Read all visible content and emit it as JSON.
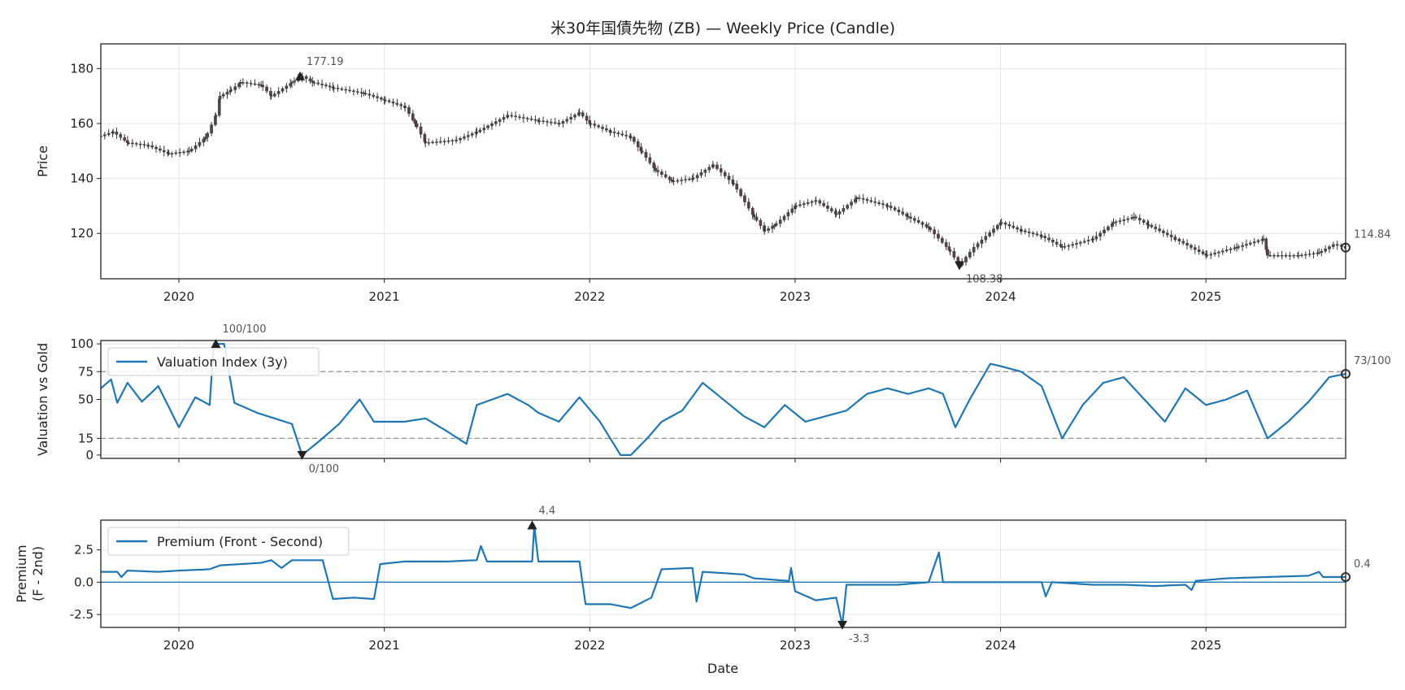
{
  "title": "米30年国債先物 (ZB) — Weekly Price (Candle)",
  "xlabel": "Date",
  "colors": {
    "up": "#5c8a70",
    "down": "#c0504d",
    "line": "#1f77b4",
    "grid": "#e6e6e6",
    "ref": "#999999",
    "axis": "#222222"
  },
  "chart_data": [
    {
      "type": "candlestick",
      "name": "price",
      "ylabel": "Price",
      "xlim": [
        2019.62,
        2025.68
      ],
      "ylim": [
        103.5,
        189
      ],
      "yticks": [
        120,
        140,
        160,
        180
      ],
      "xticks": [
        2020,
        2021,
        2022,
        2023,
        2024,
        2025
      ],
      "xtick_labels": [
        "2020",
        "2021",
        "2022",
        "2023",
        "2024",
        "2025"
      ],
      "close_anchors": [
        [
          2019.62,
          155.5
        ],
        [
          2019.68,
          157.0
        ],
        [
          2019.75,
          153.0
        ],
        [
          2019.85,
          152.0
        ],
        [
          2019.95,
          149.0
        ],
        [
          2020.05,
          150.0
        ],
        [
          2020.13,
          155.0
        ],
        [
          2020.18,
          163.0
        ],
        [
          2020.2,
          170.0
        ],
        [
          2020.25,
          172.0
        ],
        [
          2020.3,
          175.0
        ],
        [
          2020.4,
          174.0
        ],
        [
          2020.45,
          170.0
        ],
        [
          2020.55,
          175.0
        ],
        [
          2020.6,
          177.2
        ],
        [
          2020.65,
          175.0
        ],
        [
          2020.75,
          173.0
        ],
        [
          2020.9,
          171.0
        ],
        [
          2021.0,
          168.5
        ],
        [
          2021.1,
          166.0
        ],
        [
          2021.15,
          160.0
        ],
        [
          2021.2,
          153.0
        ],
        [
          2021.35,
          154.0
        ],
        [
          2021.45,
          157.0
        ],
        [
          2021.6,
          163.0
        ],
        [
          2021.75,
          161.0
        ],
        [
          2021.85,
          160.0
        ],
        [
          2021.95,
          164.0
        ],
        [
          2022.0,
          160.0
        ],
        [
          2022.1,
          157.0
        ],
        [
          2022.2,
          155.0
        ],
        [
          2022.25,
          150.0
        ],
        [
          2022.32,
          143.0
        ],
        [
          2022.4,
          139.0
        ],
        [
          2022.5,
          140.0
        ],
        [
          2022.6,
          145.0
        ],
        [
          2022.7,
          138.0
        ],
        [
          2022.8,
          126.0
        ],
        [
          2022.85,
          121.0
        ],
        [
          2022.9,
          123.0
        ],
        [
          2023.0,
          130.0
        ],
        [
          2023.1,
          132.0
        ],
        [
          2023.2,
          127.0
        ],
        [
          2023.3,
          133.0
        ],
        [
          2023.45,
          130.0
        ],
        [
          2023.55,
          126.0
        ],
        [
          2023.65,
          122.0
        ],
        [
          2023.75,
          114.0
        ],
        [
          2023.8,
          108.4
        ],
        [
          2023.87,
          115.0
        ],
        [
          2024.0,
          124.0
        ],
        [
          2024.1,
          121.0
        ],
        [
          2024.2,
          119.0
        ],
        [
          2024.3,
          115.0
        ],
        [
          2024.45,
          118.0
        ],
        [
          2024.55,
          124.0
        ],
        [
          2024.65,
          126.0
        ],
        [
          2024.72,
          123.0
        ],
        [
          2024.85,
          118.0
        ],
        [
          2025.0,
          112.0
        ],
        [
          2025.15,
          115.0
        ],
        [
          2025.28,
          118.0
        ],
        [
          2025.3,
          112.0
        ],
        [
          2025.45,
          112.0
        ],
        [
          2025.55,
          113.0
        ],
        [
          2025.62,
          116.0
        ],
        [
          2025.68,
          114.84
        ]
      ],
      "annotations": [
        {
          "x": 2020.59,
          "y": 177.19,
          "label": "177.19",
          "marker": "triangle-up"
        },
        {
          "x": 2023.8,
          "y": 108.38,
          "label": "108.38",
          "marker": "triangle-down"
        },
        {
          "x": 2025.68,
          "y": 114.84,
          "label": "114.84",
          "marker": "circle"
        }
      ]
    },
    {
      "type": "line",
      "name": "valuation",
      "ylabel": "Valuation vs Gold",
      "series": [
        {
          "name": "Valuation Index (3y)",
          "anchors": [
            [
              2019.62,
              60
            ],
            [
              2019.67,
              68
            ],
            [
              2019.7,
              47
            ],
            [
              2019.75,
              65
            ],
            [
              2019.82,
              48
            ],
            [
              2019.9,
              62
            ],
            [
              2020.0,
              25
            ],
            [
              2020.08,
              52
            ],
            [
              2020.15,
              45
            ],
            [
              2020.17,
              100
            ],
            [
              2020.22,
              100
            ],
            [
              2020.27,
              47
            ],
            [
              2020.38,
              38
            ],
            [
              2020.55,
              28
            ],
            [
              2020.6,
              0
            ],
            [
              2020.68,
              12
            ],
            [
              2020.78,
              28
            ],
            [
              2020.88,
              50
            ],
            [
              2020.95,
              30
            ],
            [
              2021.1,
              30
            ],
            [
              2021.2,
              33
            ],
            [
              2021.3,
              22
            ],
            [
              2021.4,
              10
            ],
            [
              2021.45,
              45
            ],
            [
              2021.6,
              55
            ],
            [
              2021.7,
              45
            ],
            [
              2021.75,
              38
            ],
            [
              2021.85,
              30
            ],
            [
              2021.95,
              52
            ],
            [
              2022.05,
              30
            ],
            [
              2022.15,
              0
            ],
            [
              2022.2,
              0
            ],
            [
              2022.28,
              15
            ],
            [
              2022.35,
              30
            ],
            [
              2022.45,
              40
            ],
            [
              2022.55,
              65
            ],
            [
              2022.65,
              50
            ],
            [
              2022.75,
              35
            ],
            [
              2022.85,
              25
            ],
            [
              2022.95,
              45
            ],
            [
              2023.05,
              30
            ],
            [
              2023.15,
              35
            ],
            [
              2023.25,
              40
            ],
            [
              2023.35,
              55
            ],
            [
              2023.45,
              60
            ],
            [
              2023.55,
              55
            ],
            [
              2023.65,
              60
            ],
            [
              2023.72,
              55
            ],
            [
              2023.78,
              25
            ],
            [
              2023.85,
              50
            ],
            [
              2023.95,
              82
            ],
            [
              2024.0,
              80
            ],
            [
              2024.1,
              75
            ],
            [
              2024.2,
              62
            ],
            [
              2024.3,
              15
            ],
            [
              2024.4,
              45
            ],
            [
              2024.5,
              65
            ],
            [
              2024.6,
              70
            ],
            [
              2024.7,
              50
            ],
            [
              2024.8,
              30
            ],
            [
              2024.9,
              60
            ],
            [
              2025.0,
              45
            ],
            [
              2025.1,
              50
            ],
            [
              2025.2,
              58
            ],
            [
              2025.3,
              15
            ],
            [
              2025.4,
              30
            ],
            [
              2025.5,
              48
            ],
            [
              2025.6,
              70
            ],
            [
              2025.68,
              73
            ]
          ]
        }
      ],
      "ylim": [
        -3,
        103
      ],
      "yticks": [
        0,
        15,
        50,
        75,
        100
      ],
      "reference_lines": [
        75,
        15
      ],
      "annotations": [
        {
          "x": 2020.18,
          "y": 100,
          "label": "100/100",
          "marker": "triangle-up"
        },
        {
          "x": 2020.6,
          "y": 0,
          "label": "0/100",
          "marker": "triangle-down"
        },
        {
          "x": 2025.68,
          "y": 73,
          "label": "73/100",
          "marker": "circle"
        }
      ],
      "legend": "top-left"
    },
    {
      "type": "line",
      "name": "premium",
      "ylabel": "Premium\n(F - 2nd)",
      "xlabel": "Date",
      "series": [
        {
          "name": "Premium (Front - Second)",
          "anchors": [
            [
              2019.62,
              0.8
            ],
            [
              2019.7,
              0.8
            ],
            [
              2019.72,
              0.4
            ],
            [
              2019.75,
              0.9
            ],
            [
              2019.9,
              0.8
            ],
            [
              2020.0,
              0.9
            ],
            [
              2020.15,
              1.0
            ],
            [
              2020.2,
              1.3
            ],
            [
              2020.4,
              1.5
            ],
            [
              2020.45,
              1.7
            ],
            [
              2020.5,
              1.1
            ],
            [
              2020.55,
              1.7
            ],
            [
              2020.7,
              1.7
            ],
            [
              2020.75,
              -1.3
            ],
            [
              2020.85,
              -1.2
            ],
            [
              2020.95,
              -1.3
            ],
            [
              2020.98,
              1.4
            ],
            [
              2021.1,
              1.6
            ],
            [
              2021.3,
              1.6
            ],
            [
              2021.45,
              1.7
            ],
            [
              2021.47,
              2.8
            ],
            [
              2021.5,
              1.6
            ],
            [
              2021.72,
              1.6
            ],
            [
              2021.73,
              4.4
            ],
            [
              2021.75,
              1.6
            ],
            [
              2021.95,
              1.6
            ],
            [
              2021.98,
              -1.7
            ],
            [
              2022.1,
              -1.7
            ],
            [
              2022.2,
              -2.0
            ],
            [
              2022.3,
              -1.2
            ],
            [
              2022.35,
              1.0
            ],
            [
              2022.5,
              1.1
            ],
            [
              2022.52,
              -1.5
            ],
            [
              2022.55,
              0.8
            ],
            [
              2022.75,
              0.6
            ],
            [
              2022.8,
              0.3
            ],
            [
              2022.97,
              0.1
            ],
            [
              2022.98,
              1.1
            ],
            [
              2023.0,
              -0.7
            ],
            [
              2023.1,
              -1.4
            ],
            [
              2023.2,
              -1.2
            ],
            [
              2023.23,
              -3.3
            ],
            [
              2023.25,
              -0.2
            ],
            [
              2023.5,
              -0.2
            ],
            [
              2023.65,
              0.0
            ],
            [
              2023.7,
              2.3
            ],
            [
              2023.72,
              0.0
            ],
            [
              2024.0,
              0.0
            ],
            [
              2024.2,
              0.0
            ],
            [
              2024.22,
              -1.1
            ],
            [
              2024.25,
              0.0
            ],
            [
              2024.45,
              -0.2
            ],
            [
              2024.6,
              -0.2
            ],
            [
              2024.75,
              -0.3
            ],
            [
              2024.9,
              -0.2
            ],
            [
              2024.93,
              -0.6
            ],
            [
              2024.95,
              0.1
            ],
            [
              2025.1,
              0.3
            ],
            [
              2025.3,
              0.4
            ],
            [
              2025.5,
              0.5
            ],
            [
              2025.55,
              0.8
            ],
            [
              2025.57,
              0.4
            ],
            [
              2025.68,
              0.4
            ]
          ]
        }
      ],
      "ylim": [
        -3.5,
        4.8
      ],
      "yticks": [
        -2.5,
        0.0,
        2.5
      ],
      "ytick_labels": [
        "-2.5",
        "0.0",
        "2.5"
      ],
      "zero_line": 0,
      "xticks": [
        2020,
        2021,
        2022,
        2023,
        2024,
        2025
      ],
      "xtick_labels": [
        "2020",
        "2021",
        "2022",
        "2023",
        "2024",
        "2025"
      ],
      "annotations": [
        {
          "x": 2021.72,
          "y": 4.4,
          "label": "4.4",
          "marker": "triangle-up"
        },
        {
          "x": 2023.23,
          "y": -3.3,
          "label": "-3.3",
          "marker": "triangle-down"
        },
        {
          "x": 2025.68,
          "y": 0.4,
          "label": "0.4",
          "marker": "circle"
        }
      ],
      "legend": "top-left"
    }
  ]
}
